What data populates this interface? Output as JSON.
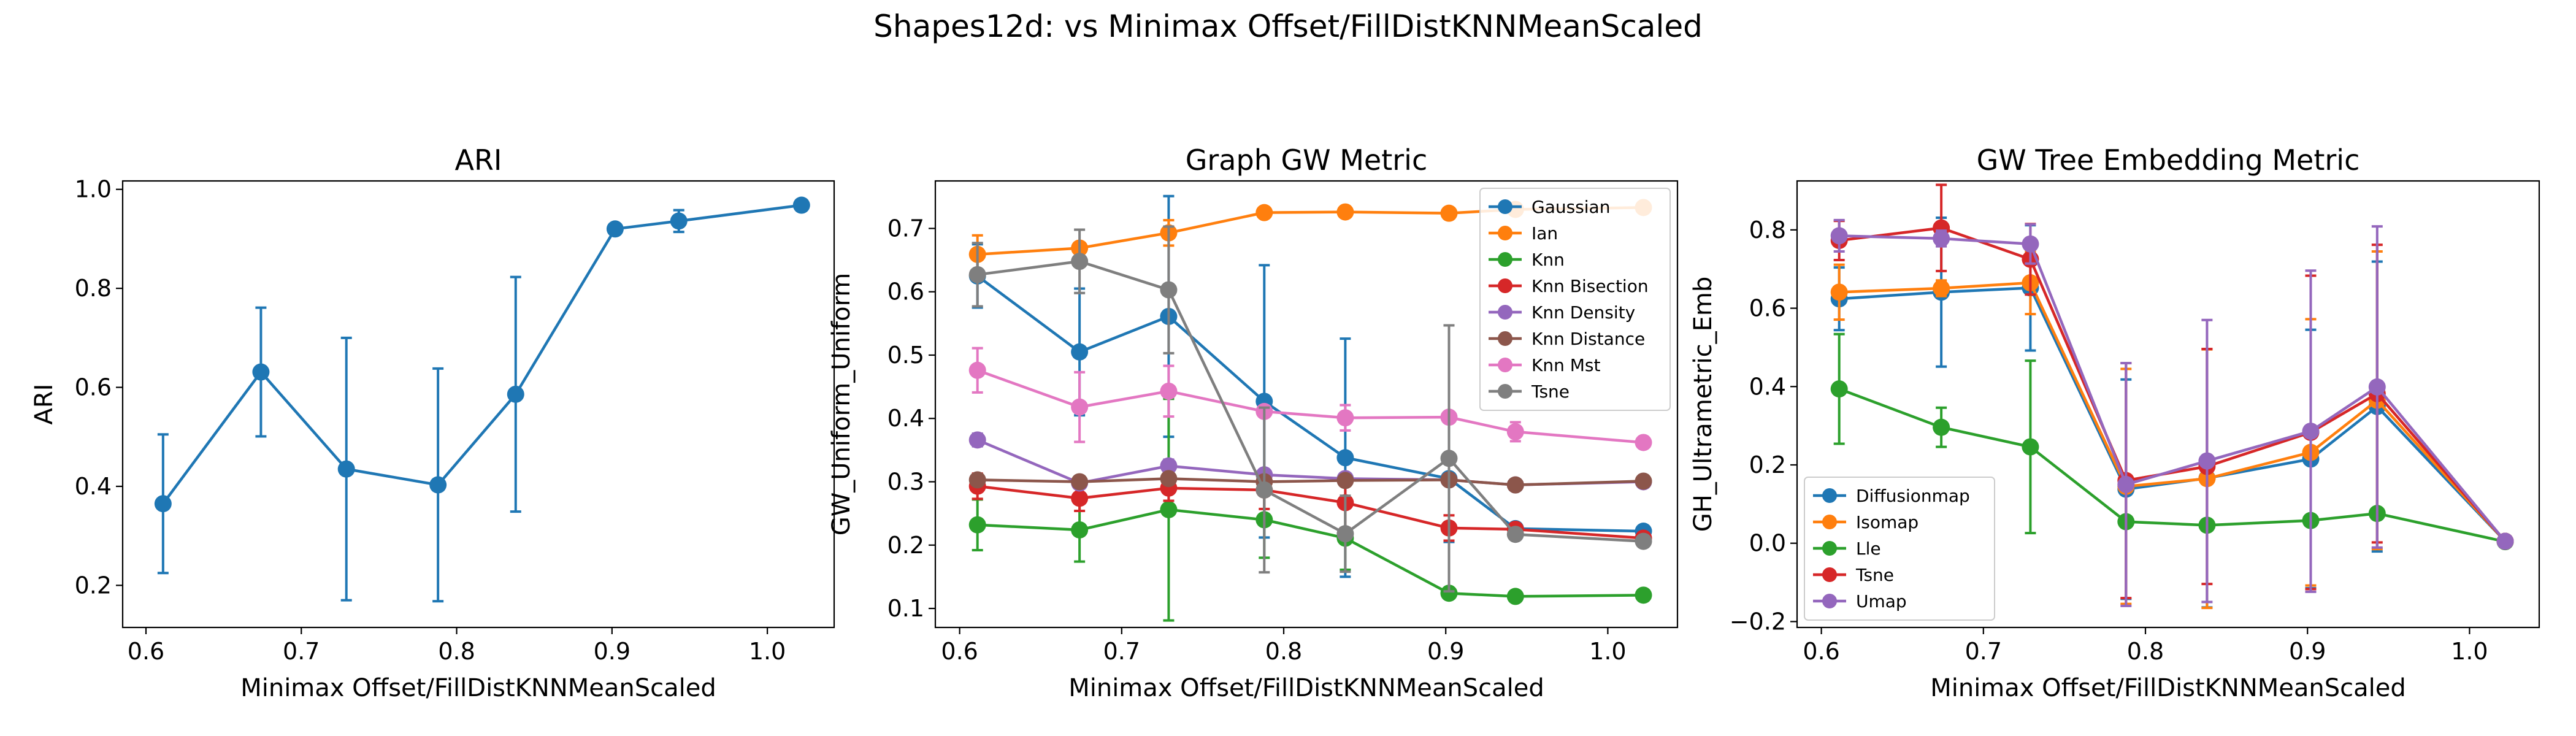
{
  "figure": {
    "title": "Shapes12d: vs Minimax Offset/FillDistKNNMeanScaled"
  },
  "x_values": [
    0.611,
    0.674,
    0.729,
    0.788,
    0.838,
    0.902,
    0.943,
    1.022
  ],
  "chart_data": [
    {
      "type": "line",
      "title": "ARI",
      "xlabel": "Minimax Offset/FillDistKNNMeanScaled",
      "ylabel": "ARI",
      "xlim": [
        0.585,
        1.043
      ],
      "ylim": [
        0.115,
        1.017
      ],
      "xticks": [
        "0.6",
        "0.7",
        "0.8",
        "0.9",
        "1.0"
      ],
      "yticks": [
        "0.2",
        "0.4",
        "0.6",
        "0.8",
        "1.0"
      ],
      "legend": "none",
      "series": [
        {
          "color": "#1f77b4",
          "values": [
            0.365,
            0.631,
            0.435,
            0.403,
            0.586,
            0.92,
            0.936,
            0.968
          ],
          "errors": [
            0.14,
            0.13,
            0.265,
            0.235,
            0.237,
            0.0,
            0.022,
            0.0
          ]
        }
      ]
    },
    {
      "type": "line",
      "title": "Graph GW Metric",
      "xlabel": "Minimax Offset/FillDistKNNMeanScaled",
      "ylabel": "GW_Uniform_Uniform",
      "xlim": [
        0.585,
        1.043
      ],
      "ylim": [
        0.07,
        0.775
      ],
      "xticks": [
        "0.6",
        "0.7",
        "0.8",
        "0.9",
        "1.0"
      ],
      "yticks": [
        "0.1",
        "0.2",
        "0.3",
        "0.4",
        "0.5",
        "0.6",
        "0.7"
      ],
      "legend": "top-right",
      "series": [
        {
          "name": "Gaussian",
          "color": "#1f77b4",
          "values": [
            0.625,
            0.505,
            0.561,
            0.427,
            0.338,
            0.305,
            0.226,
            0.222
          ],
          "errors": [
            0.05,
            0.1,
            0.19,
            0.215,
            0.188,
            0.1,
            0.0,
            0.0
          ]
        },
        {
          "name": "Ian",
          "color": "#ff7f0e",
          "values": [
            0.659,
            0.669,
            0.693,
            0.725,
            0.726,
            0.724,
            0.73,
            0.733
          ],
          "errors": [
            0.03,
            0.0,
            0.02,
            0.0,
            0.0,
            0.0,
            0.0,
            0.0
          ]
        },
        {
          "name": "Knn",
          "color": "#2ca02c",
          "values": [
            0.232,
            0.224,
            0.256,
            0.24,
            0.211,
            0.124,
            0.119,
            0.121
          ],
          "errors": [
            0.04,
            0.05,
            0.175,
            0.06,
            0.05,
            0.0,
            0.0,
            0.0
          ]
        },
        {
          "name": "Knn Bisection",
          "color": "#d62728",
          "values": [
            0.293,
            0.274,
            0.29,
            0.287,
            0.267,
            0.227,
            0.225,
            0.211
          ],
          "errors": [
            0.02,
            0.02,
            0.02,
            0.03,
            0.04,
            0.02,
            0.0,
            0.0
          ]
        },
        {
          "name": "Knn Density",
          "color": "#9467bd",
          "values": [
            0.366,
            0.298,
            0.325,
            0.311,
            0.305,
            0.303,
            0.295,
            0.3
          ],
          "errors": [
            0.01,
            0.0,
            0.01,
            0.0,
            0.0,
            0.0,
            0.0,
            0.0
          ]
        },
        {
          "name": "Knn Distance",
          "color": "#8c564b",
          "values": [
            0.303,
            0.3,
            0.305,
            0.3,
            0.302,
            0.303,
            0.295,
            0.301
          ],
          "errors": [
            0.0,
            0.0,
            0.0,
            0.0,
            0.0,
            0.0,
            0.0,
            0.0
          ]
        },
        {
          "name": "Knn Mst",
          "color": "#e377c2",
          "values": [
            0.476,
            0.418,
            0.443,
            0.411,
            0.401,
            0.402,
            0.379,
            0.362
          ],
          "errors": [
            0.035,
            0.055,
            0.04,
            0.0,
            0.02,
            0.0,
            0.015,
            0.0
          ]
        },
        {
          "name": "Tsne",
          "color": "#7f7f7f",
          "values": [
            0.627,
            0.648,
            0.603,
            0.287,
            0.218,
            0.337,
            0.217,
            0.206
          ],
          "errors": [
            0.05,
            0.05,
            0.1,
            0.13,
            0.06,
            0.21,
            0.0,
            0.0
          ]
        }
      ]
    },
    {
      "type": "line",
      "title": "GW Tree Embedding Metric",
      "xlabel": "Minimax Offset/FillDistKNNMeanScaled",
      "ylabel": "GH_Ultrametric_Emb",
      "xlim": [
        0.585,
        1.043
      ],
      "ylim": [
        -0.215,
        0.925
      ],
      "xticks": [
        "0.6",
        "0.7",
        "0.8",
        "0.9",
        "1.0"
      ],
      "yticks": [
        "−0.2",
        "0.0",
        "0.2",
        "0.4",
        "0.6",
        "0.8"
      ],
      "legend": "bottom-left",
      "series": [
        {
          "name": "Diffusionmap",
          "color": "#1f77b4",
          "values": [
            0.624,
            0.641,
            0.652,
            0.138,
            0.166,
            0.215,
            0.349,
            0.005
          ],
          "errors": [
            0.08,
            0.19,
            0.16,
            0.28,
            0.33,
            0.33,
            0.37,
            0.0
          ]
        },
        {
          "name": "Isomap",
          "color": "#ff7f0e",
          "values": [
            0.641,
            0.651,
            0.665,
            0.145,
            0.165,
            0.232,
            0.365,
            0.005
          ],
          "errors": [
            0.07,
            0.02,
            0.08,
            0.3,
            0.33,
            0.34,
            0.38,
            0.0
          ]
        },
        {
          "name": "Lle",
          "color": "#2ca02c",
          "values": [
            0.394,
            0.296,
            0.246,
            0.055,
            0.046,
            0.058,
            0.076,
            0.004
          ],
          "errors": [
            0.14,
            0.05,
            0.22,
            0.0,
            0.0,
            0.0,
            0.0,
            0.0
          ]
        },
        {
          "name": "Tsne",
          "color": "#d62728",
          "values": [
            0.773,
            0.805,
            0.725,
            0.16,
            0.196,
            0.283,
            0.382,
            0.005
          ],
          "errors": [
            0.05,
            0.11,
            0.09,
            0.3,
            0.3,
            0.4,
            0.38,
            0.0
          ]
        },
        {
          "name": "Umap",
          "color": "#9467bd",
          "values": [
            0.785,
            0.778,
            0.764,
            0.15,
            0.21,
            0.286,
            0.399,
            0.005
          ],
          "errors": [
            0.04,
            0.02,
            0.05,
            0.31,
            0.36,
            0.41,
            0.41,
            0.0
          ]
        }
      ]
    }
  ]
}
